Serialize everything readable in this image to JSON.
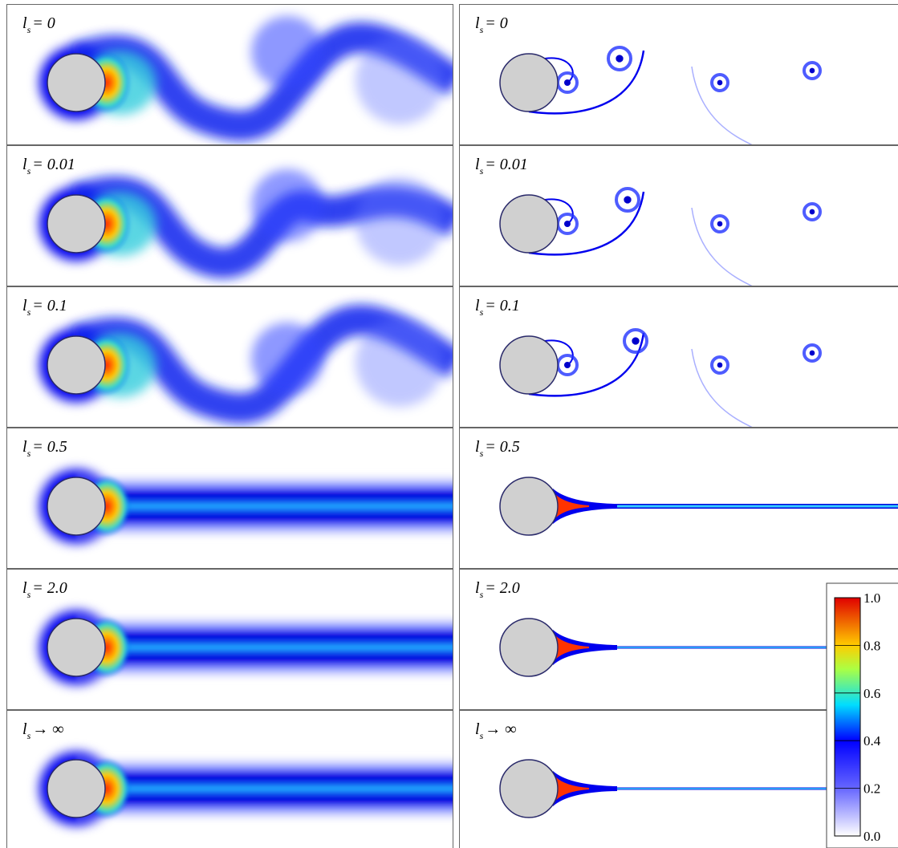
{
  "panels": [
    {
      "symbol": "l",
      "subscript": "s",
      "rest": "= 0"
    },
    {
      "symbol": "l",
      "subscript": "s",
      "rest": "= 0"
    },
    {
      "symbol": "l",
      "subscript": "s",
      "rest": "= 0.01"
    },
    {
      "symbol": "l",
      "subscript": "s",
      "rest": "= 0.01"
    },
    {
      "symbol": "l",
      "subscript": "s",
      "rest": "= 0.1"
    },
    {
      "symbol": "l",
      "subscript": "s",
      "rest": "= 0.1"
    },
    {
      "symbol": "l",
      "subscript": "s",
      "rest": "= 0.5"
    },
    {
      "symbol": "l",
      "subscript": "s",
      "rest": "= 0.5"
    },
    {
      "symbol": "l",
      "subscript": "s",
      "rest": "= 2.0"
    },
    {
      "symbol": "l",
      "subscript": "s",
      "rest": "= 2.0"
    },
    {
      "symbol": "l",
      "subscript": "s",
      "rest": "→ ∞"
    },
    {
      "symbol": "l",
      "subscript": "s",
      "rest": "→ ∞"
    }
  ],
  "colorbar": {
    "ticks": [
      {
        "value": 1,
        "label": "1.0"
      },
      {
        "value": 0.8,
        "label": "0.8"
      },
      {
        "value": 0.6,
        "label": "0.6"
      },
      {
        "value": 0.4,
        "label": "0.4"
      },
      {
        "value": 0.2,
        "label": "0.2"
      },
      {
        "value": 0,
        "label": "0.0"
      }
    ]
  }
}
